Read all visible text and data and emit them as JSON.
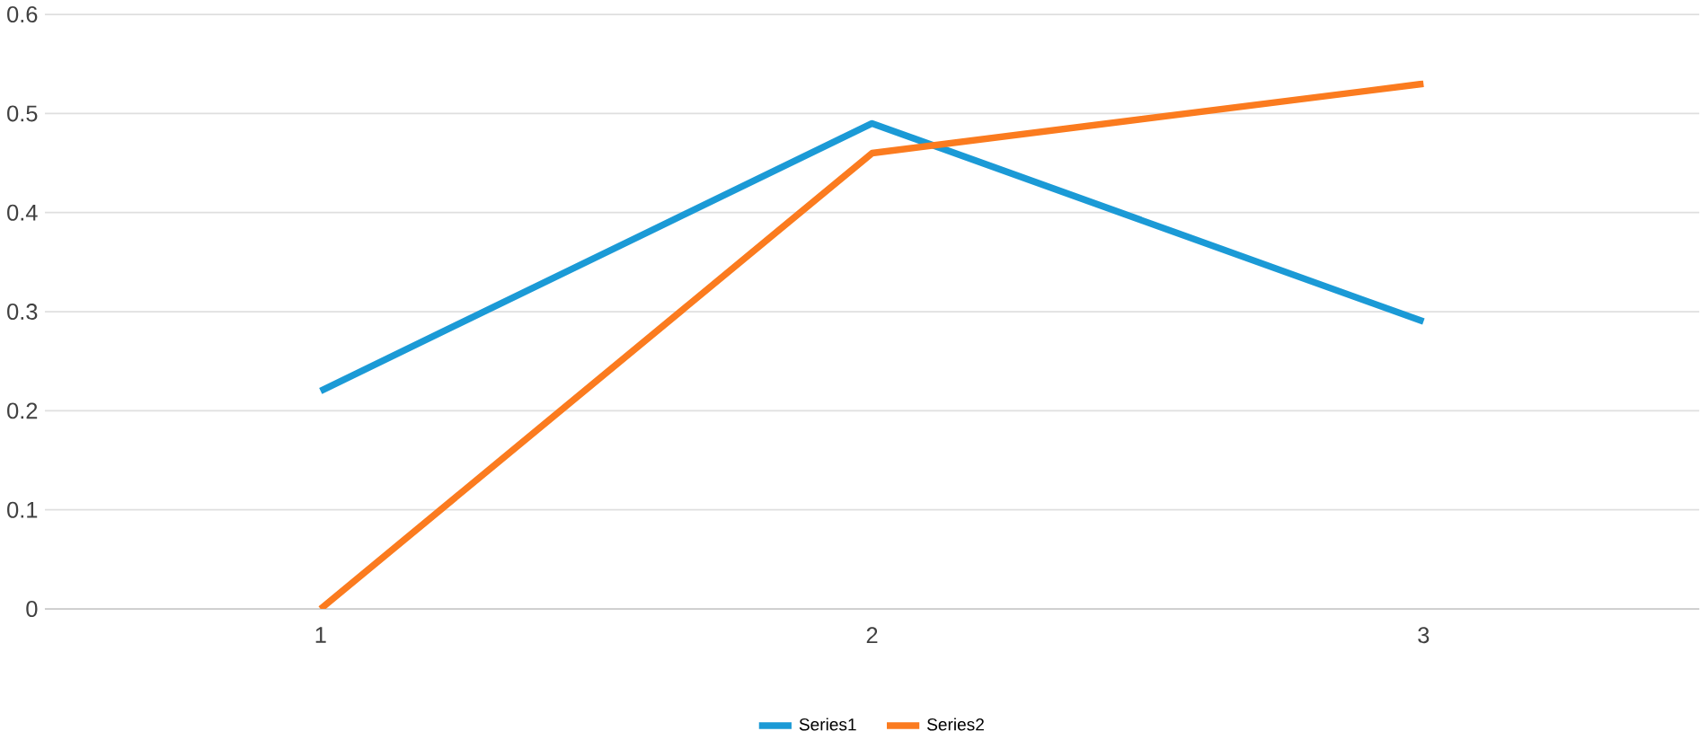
{
  "chart_data": {
    "type": "line",
    "categories": [
      "1",
      "2",
      "3"
    ],
    "series": [
      {
        "name": "Series1",
        "color": "#1b9ad6",
        "values": [
          0.22,
          0.49,
          0.29
        ]
      },
      {
        "name": "Series2",
        "color": "#fb7b1f",
        "values": [
          0,
          0.46,
          0.53
        ]
      }
    ],
    "ylim": [
      0,
      0.6
    ],
    "yticks": [
      0,
      0.1,
      0.2,
      0.3,
      0.4,
      0.5,
      0.6
    ],
    "grid": "y",
    "legend": "bottom",
    "marker": "none",
    "line_style": "solid"
  }
}
